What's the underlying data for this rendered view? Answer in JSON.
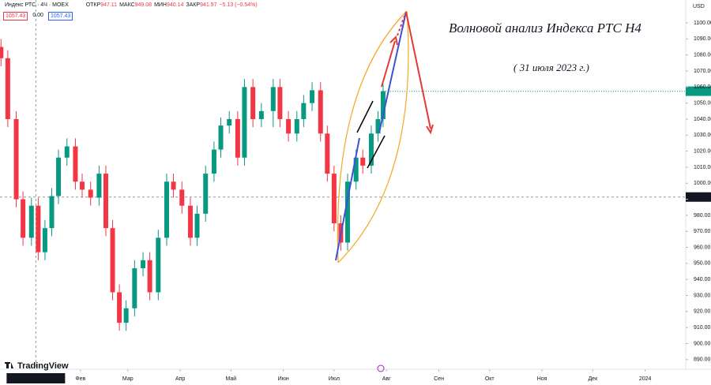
{
  "header": {
    "symbol": "Индекс РТС · 4Ч · MOEX",
    "ohlc": [
      {
        "label": "ОТКР",
        "value": "947.11"
      },
      {
        "label": "МАКС",
        "value": "949.08"
      },
      {
        "label": "МИН",
        "value": "940.14"
      },
      {
        "label": "ЗАКР",
        "value": "941.97"
      }
    ],
    "change": "−5.13 (−0.54%)",
    "boxes": [
      "1057.43",
      "0.00",
      "1057.43"
    ],
    "currency": "USD",
    "logo": "TradingView"
  },
  "chart_data": {
    "type": "candlestick",
    "title": "Волновой анализ Индекса РТС H4",
    "subtitle": "( 31 июля 2023 г.)",
    "up_color": "#089981",
    "down_color": "#f23645",
    "x": [
      -16,
      -12,
      -7,
      -3,
      2,
      6,
      10,
      14,
      18,
      23,
      28,
      32,
      37,
      42,
      46,
      50,
      54,
      58,
      63,
      68,
      72,
      77,
      82,
      86,
      91,
      96,
      100,
      105,
      110,
      114,
      119,
      124,
      128,
      133,
      138,
      145,
      149,
      154,
      159,
      163,
      168,
      173,
      177,
      181,
      185,
      189,
      194,
      198,
      203,
      207,
      210
    ],
    "open": [
      1085,
      1078,
      1040,
      990,
      966,
      986,
      957,
      972,
      992,
      1016,
      1023,
      1001,
      996,
      991,
      1006,
      972,
      932,
      913,
      922,
      947,
      952,
      932,
      966,
      1001,
      996,
      986,
      966,
      981,
      1006,
      1021,
      1036,
      1040,
      1016,
      1060,
      1040,
      1045,
      1060,
      1040,
      1031,
      1040,
      1050,
      1058,
      1031,
      1006,
      975,
      963,
      1001,
      1016,
      1011,
      1031,
      1040
    ],
    "high": [
      1090,
      1083,
      1045,
      995,
      991,
      991,
      977,
      997,
      1021,
      1028,
      1028,
      1006,
      1001,
      1011,
      1011,
      977,
      937,
      927,
      952,
      957,
      957,
      971,
      1006,
      1006,
      1001,
      991,
      986,
      1011,
      1026,
      1041,
      1045,
      1045,
      1065,
      1065,
      1050,
      1065,
      1065,
      1045,
      1045,
      1055,
      1063,
      1063,
      1036,
      1011,
      980,
      1006,
      1021,
      1021,
      1036,
      1045,
      1062
    ],
    "low": [
      1073,
      1035,
      985,
      961,
      961,
      952,
      952,
      967,
      987,
      1011,
      996,
      991,
      986,
      986,
      967,
      927,
      908,
      908,
      917,
      942,
      927,
      927,
      961,
      991,
      981,
      961,
      961,
      976,
      1001,
      1016,
      1031,
      1011,
      1011,
      1035,
      1035,
      1035,
      1035,
      1026,
      1026,
      1035,
      1045,
      1026,
      1001,
      970,
      958,
      958,
      996,
      1006,
      1006,
      1026,
      1035
    ],
    "close": [
      1078,
      1040,
      990,
      966,
      986,
      957,
      972,
      992,
      1016,
      1023,
      1001,
      996,
      991,
      1006,
      972,
      932,
      913,
      922,
      947,
      952,
      932,
      966,
      1001,
      996,
      986,
      966,
      981,
      1006,
      1021,
      1036,
      1040,
      1016,
      1060,
      1040,
      1045,
      1060,
      1040,
      1031,
      1040,
      1050,
      1058,
      1031,
      1006,
      975,
      963,
      1001,
      1016,
      1011,
      1031,
      1040,
      1057.43
    ],
    "xlim": [
      -16.6,
      389
    ],
    "xticks": [
      {
        "value": 31,
        "label": "Фев"
      },
      {
        "value": 59,
        "label": "Мар"
      },
      {
        "value": 90,
        "label": "Апр"
      },
      {
        "value": 120,
        "label": "Май"
      },
      {
        "value": 151,
        "label": "Июн"
      },
      {
        "value": 181,
        "label": "Июл"
      },
      {
        "value": 212,
        "label": "Авг"
      },
      {
        "value": 243,
        "label": "Сен"
      },
      {
        "value": 273,
        "label": "Окт"
      },
      {
        "value": 304,
        "label": "Ноя"
      },
      {
        "value": 334,
        "label": "Дек"
      },
      {
        "value": 365,
        "label": "2024"
      }
    ],
    "ylim": [
      884,
      1114.3
    ],
    "yticks": [
      {
        "value": 890,
        "label": "890.00"
      },
      {
        "value": 900,
        "label": "900.00"
      },
      {
        "value": 910,
        "label": "910.00"
      },
      {
        "value": 920,
        "label": "920.00"
      },
      {
        "value": 930,
        "label": "930.00"
      },
      {
        "value": 940,
        "label": "940.00"
      },
      {
        "value": 950,
        "label": "950.00"
      },
      {
        "value": 960,
        "label": "960.00"
      },
      {
        "value": 970,
        "label": "970.00"
      },
      {
        "value": 980,
        "label": "980.00"
      },
      {
        "value": 990,
        "label": "990.00"
      },
      {
        "value": 1000,
        "label": "1000.00"
      },
      {
        "value": 1010,
        "label": "1010.00"
      },
      {
        "value": 1020,
        "label": "1020.00"
      },
      {
        "value": 1030,
        "label": "1030.00"
      },
      {
        "value": 1040,
        "label": "1040.00"
      },
      {
        "value": 1050,
        "label": "1050.00"
      },
      {
        "value": 1060,
        "label": "1060.00"
      },
      {
        "value": 1070,
        "label": "1070.00"
      },
      {
        "value": 1080,
        "label": "1080.00"
      },
      {
        "value": 1090,
        "label": "1090.00"
      },
      {
        "value": 1100,
        "label": "1100.00"
      }
    ],
    "last_price": 1057.43,
    "crosshair": {
      "x": {
        "value": 4.6,
        "label": "чт 05 Янв '23 14:00"
      },
      "y": 991.41
    }
  }
}
